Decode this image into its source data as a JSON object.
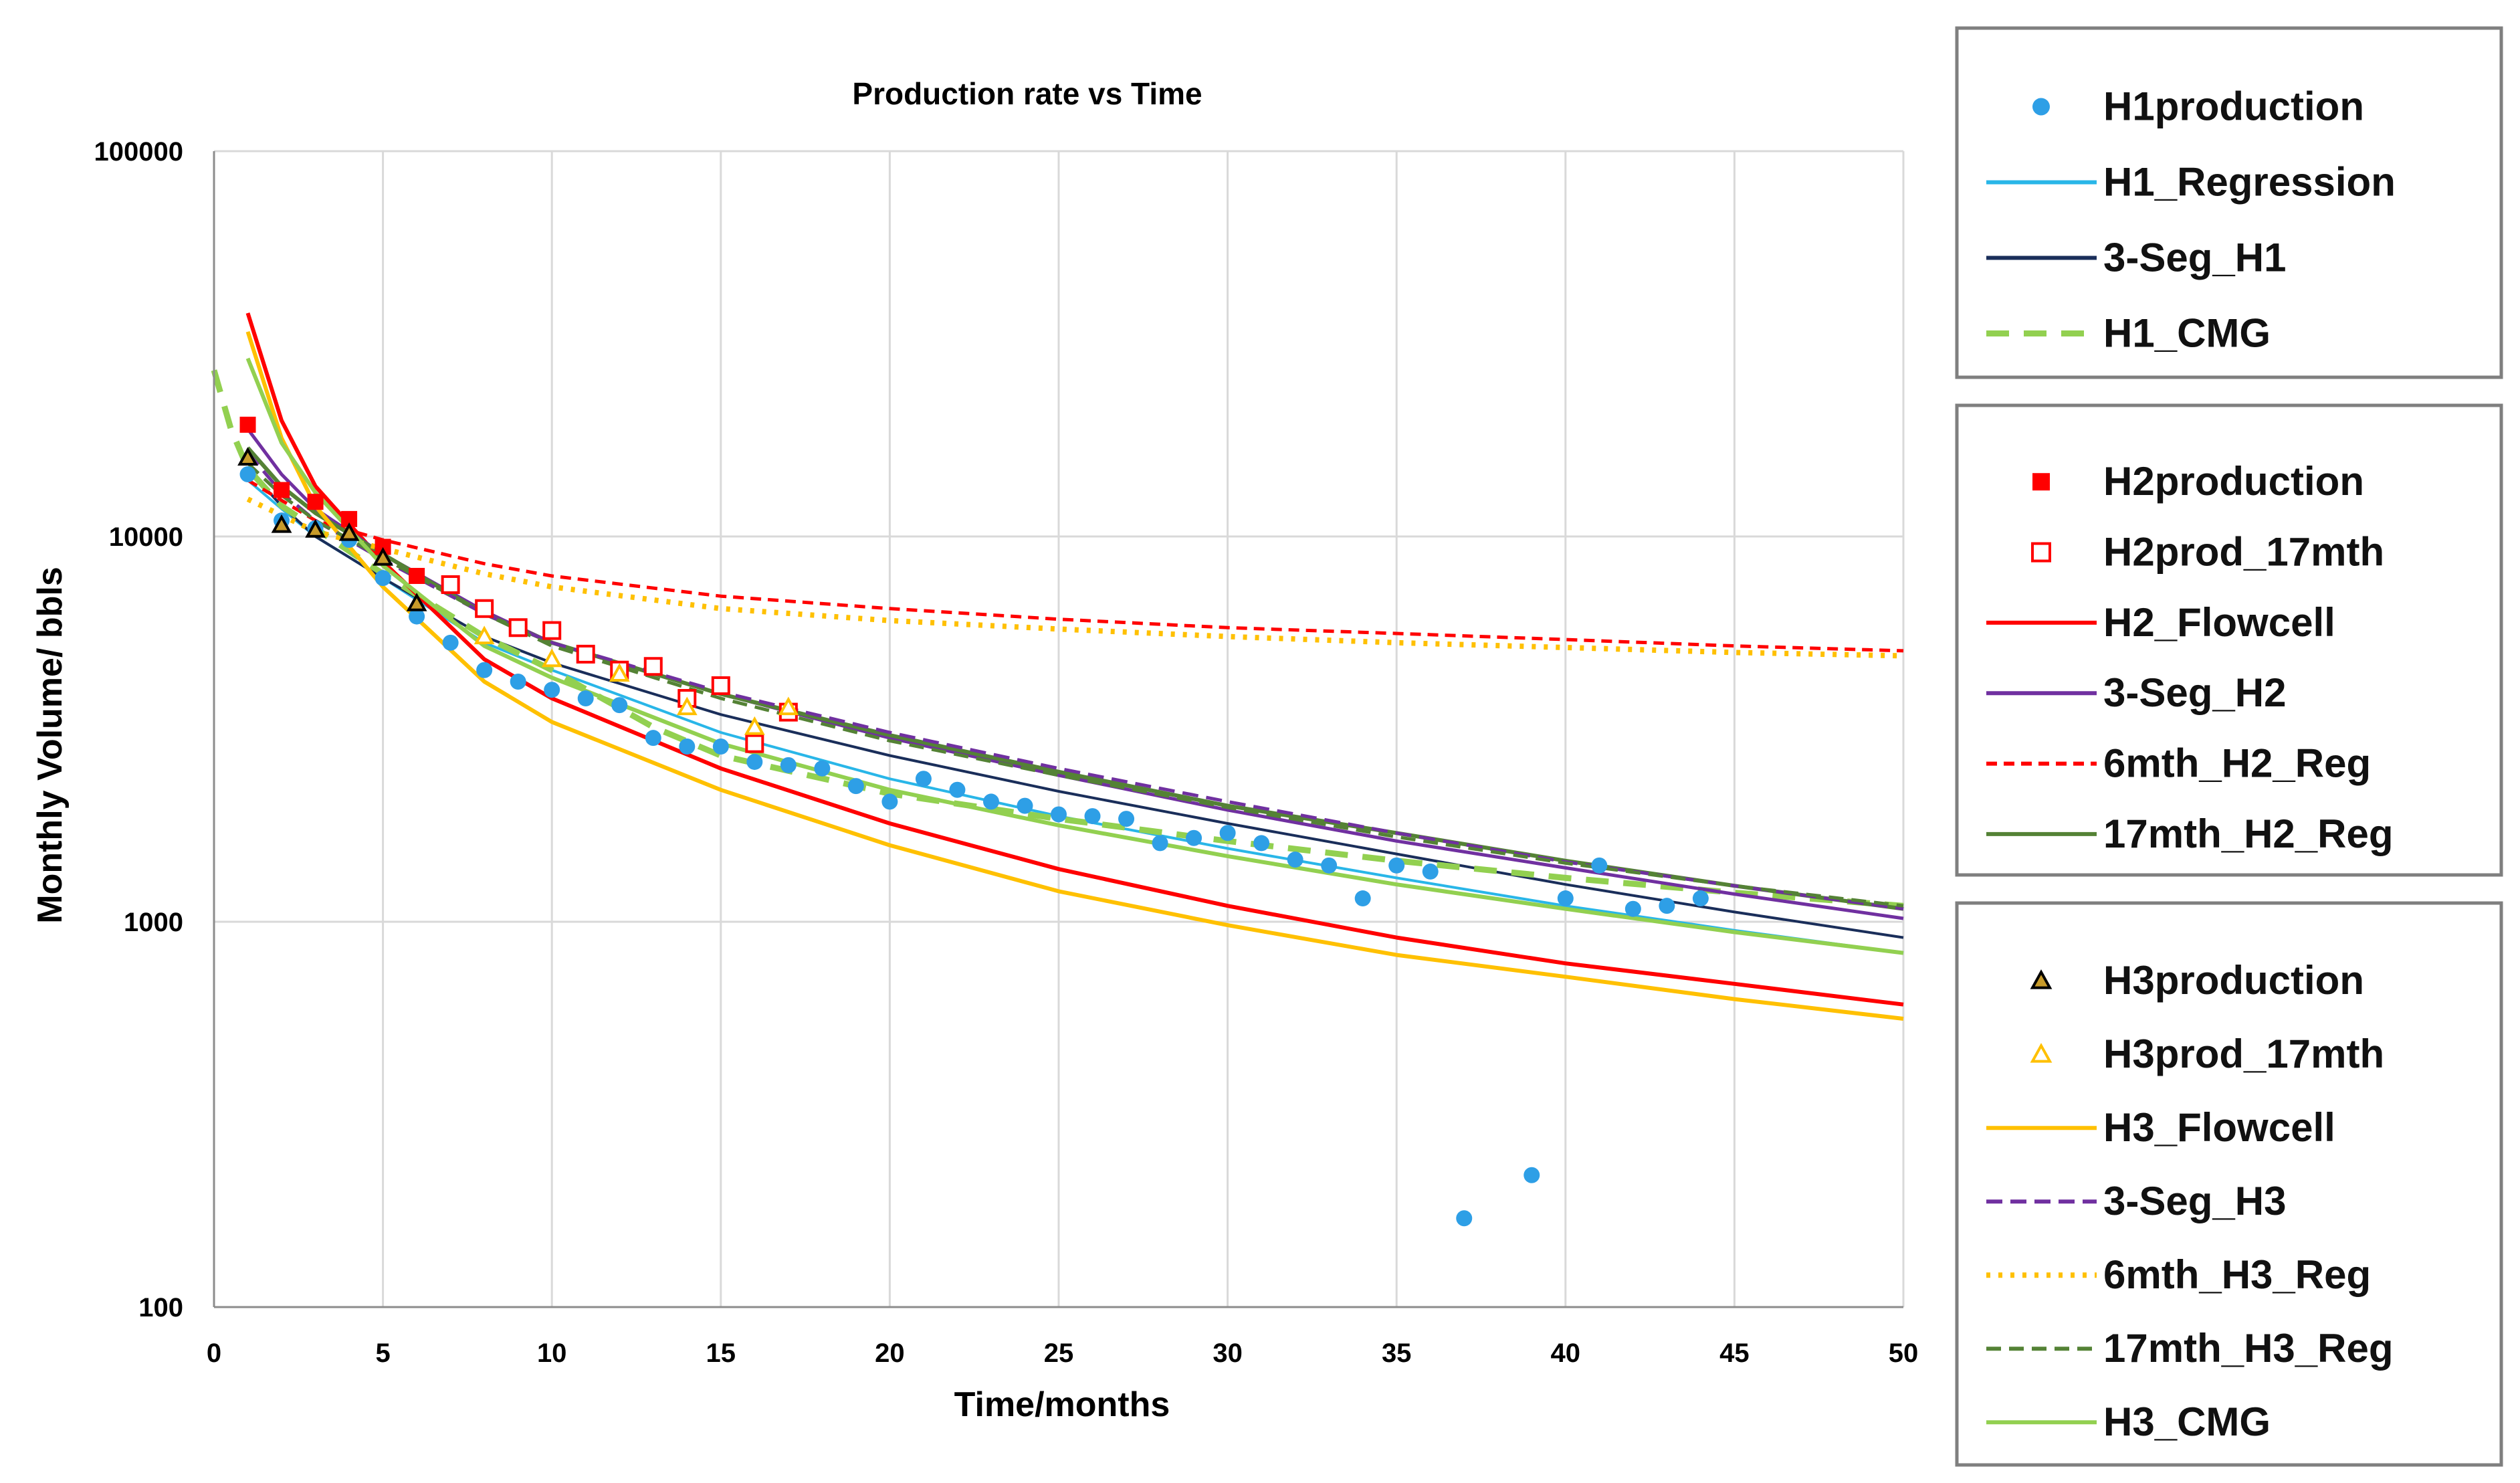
{
  "chart_data": {
    "type": "scatter",
    "title": "Production rate vs Time",
    "xlabel": "Time/months",
    "ylabel": "Monthly Volume/ bbls",
    "xlim": [
      0,
      50
    ],
    "ylim": [
      100,
      100000
    ],
    "yscale": "log",
    "grid": true,
    "xticks": [
      "0",
      "5",
      "10",
      "15",
      "20",
      "25",
      "30",
      "35",
      "40",
      "45",
      "50"
    ],
    "yticks": [
      "100",
      "1000",
      "10000",
      "100000"
    ],
    "legend_groups": [
      [
        "H1production",
        "H1_Regression",
        "3-Seg_H1",
        "H1_CMG"
      ],
      [
        "H2production",
        "H2prod_17mth",
        "H2_Flowcell",
        "3-Seg_H2",
        "6mth_H2_Reg",
        "17mth_H2_Reg"
      ],
      [
        "H3production",
        "H3prod_17mth",
        "H3_Flowcell",
        "3-Seg_H3",
        "6mth_H3_Reg",
        "17mth_H3_Reg",
        "H3_CMG"
      ]
    ],
    "series": [
      {
        "name": "H1production",
        "kind": "points",
        "marker": "circle",
        "color": "#2e9fe6",
        "x": [
          1,
          2,
          3,
          4,
          5,
          6,
          7,
          8,
          9,
          10,
          11,
          12,
          13,
          14,
          15,
          16,
          17,
          18,
          19,
          20,
          21,
          22,
          23,
          24,
          25,
          26,
          27,
          28,
          29,
          30,
          31,
          32,
          33,
          34,
          35,
          36,
          37,
          39,
          40,
          41,
          42,
          43,
          44
        ],
        "y": [
          14500,
          11000,
          10500,
          9800,
          7800,
          6200,
          5300,
          4500,
          4200,
          4000,
          3800,
          3650,
          3000,
          2850,
          2850,
          2600,
          2550,
          2500,
          2250,
          2050,
          2350,
          2200,
          2050,
          2000,
          1900,
          1880,
          1850,
          1600,
          1650,
          1700,
          1600,
          1450,
          1400,
          1150,
          1400,
          1350,
          170,
          220,
          1150,
          1400,
          1080,
          1100,
          1150
        ]
      },
      {
        "name": "H1_Regression",
        "kind": "line",
        "color": "#29b6e8",
        "width": 4,
        "x": [
          1,
          2,
          3,
          5,
          8,
          10,
          15,
          20,
          25,
          30,
          35,
          40,
          45,
          50
        ],
        "y": [
          14000,
          11800,
          10000,
          7800,
          5300,
          4500,
          3100,
          2350,
          1880,
          1550,
          1300,
          1100,
          950,
          830
        ]
      },
      {
        "name": "3-Seg_H1",
        "kind": "line",
        "color": "#1a2e5a",
        "width": 4,
        "x": [
          1,
          2,
          3,
          5,
          8,
          10,
          15,
          20,
          25,
          30,
          35,
          40,
          45,
          50
        ],
        "y": [
          15000,
          12000,
          10000,
          7800,
          5500,
          4700,
          3450,
          2700,
          2180,
          1800,
          1500,
          1250,
          1060,
          910
        ]
      },
      {
        "name": "H1_CMG",
        "kind": "line",
        "dash": "34 22",
        "color": "#92d050",
        "width": 9,
        "x": [
          0,
          0.5,
          1,
          2,
          3,
          5,
          8,
          10,
          13,
          15,
          20,
          25,
          30,
          35,
          40,
          45,
          50
        ],
        "y": [
          27000,
          19000,
          15000,
          12000,
          10500,
          8000,
          5500,
          4500,
          3200,
          2700,
          2150,
          1850,
          1620,
          1440,
          1300,
          1190,
          1100
        ]
      },
      {
        "name": "H2production",
        "kind": "points",
        "marker": "square",
        "color": "#ff0000",
        "x": [
          1,
          2,
          3,
          4,
          5,
          6
        ],
        "y": [
          19500,
          13200,
          12300,
          11100,
          9400,
          7900
        ]
      },
      {
        "name": "H2prod_17mth",
        "kind": "points",
        "marker": "square-open",
        "color": "#ff0000",
        "x": [
          7,
          8,
          9,
          10,
          11,
          12,
          13,
          14,
          15,
          16,
          17
        ],
        "y": [
          7500,
          6500,
          5800,
          5700,
          4950,
          4500,
          4600,
          3800,
          4100,
          2900,
          3500
        ]
      },
      {
        "name": "H2_Flowcell",
        "kind": "line",
        "color": "#ff0000",
        "width": 6,
        "x": [
          1,
          2,
          3,
          5,
          8,
          10,
          15,
          20,
          25,
          30,
          35,
          40,
          45,
          50
        ],
        "y": [
          38000,
          20000,
          13500,
          8600,
          4800,
          3800,
          2500,
          1800,
          1370,
          1100,
          910,
          780,
          690,
          610
        ]
      },
      {
        "name": "3-Seg_H2",
        "kind": "line",
        "color": "#7030a0",
        "width": 5,
        "x": [
          1,
          2,
          3,
          5,
          8,
          10,
          15,
          20,
          25,
          30,
          35,
          40,
          45,
          50
        ],
        "y": [
          19000,
          14500,
          11800,
          9000,
          6400,
          5300,
          3900,
          3000,
          2400,
          1950,
          1620,
          1380,
          1180,
          1020
        ]
      },
      {
        "name": "6mth_H2_Reg",
        "kind": "line",
        "dash": "16 10",
        "color": "#ff0000",
        "width": 5,
        "x": [
          1,
          3,
          5,
          8,
          10,
          15,
          20,
          25,
          30,
          35,
          40,
          45,
          50
        ],
        "y": [
          14000,
          11000,
          9800,
          8500,
          7900,
          7000,
          6500,
          6100,
          5800,
          5600,
          5400,
          5200,
          5050
        ]
      },
      {
        "name": "17mth_H2_Reg",
        "kind": "line",
        "color": "#548235",
        "width": 6,
        "x": [
          1,
          2,
          3,
          5,
          8,
          10,
          15,
          20,
          25,
          30,
          35,
          40,
          45,
          50
        ],
        "y": [
          17000,
          13500,
          11500,
          9000,
          6300,
          5300,
          3900,
          3050,
          2450,
          2000,
          1700,
          1440,
          1240,
          1080
        ]
      },
      {
        "name": "H3production",
        "kind": "points",
        "marker": "triangle",
        "color": "#000000",
        "fill": "#c89b2a",
        "x": [
          1,
          2,
          3,
          4,
          5,
          6
        ],
        "y": [
          16000,
          10700,
          10400,
          10200,
          8800,
          6700
        ]
      },
      {
        "name": "H3prod_17mth",
        "kind": "points",
        "marker": "triangle-open",
        "color": "#ffc000",
        "x": [
          8,
          10,
          12,
          14,
          16,
          17
        ],
        "y": [
          5500,
          4800,
          4400,
          3600,
          3200,
          3600
        ]
      },
      {
        "name": "H3_Flowcell",
        "kind": "line",
        "color": "#ffc000",
        "width": 6,
        "x": [
          1,
          2,
          3,
          5,
          8,
          10,
          15,
          20,
          25,
          30,
          35,
          40,
          45,
          50
        ],
        "y": [
          34000,
          18000,
          12000,
          7400,
          4200,
          3300,
          2200,
          1580,
          1200,
          980,
          820,
          720,
          630,
          560
        ]
      },
      {
        "name": "3-Seg_H3",
        "kind": "line",
        "dash": "24 12",
        "color": "#7030a0",
        "width": 5,
        "x": [
          1,
          2,
          3,
          5,
          8,
          10,
          15,
          20,
          25,
          30,
          35,
          40,
          45,
          50
        ],
        "y": [
          16500,
          13000,
          11000,
          8700,
          6300,
          5300,
          3950,
          3100,
          2500,
          2050,
          1700,
          1430,
          1240,
          1080
        ]
      },
      {
        "name": "6mth_H3_Reg",
        "kind": "line",
        "dash": "6 12",
        "color": "#ffc000",
        "width": 8,
        "x": [
          1,
          3,
          5,
          8,
          10,
          15,
          20,
          25,
          30,
          35,
          40,
          45,
          50
        ],
        "y": [
          12500,
          10300,
          9300,
          8000,
          7400,
          6500,
          6050,
          5750,
          5500,
          5300,
          5150,
          5000,
          4900
        ]
      },
      {
        "name": "17mth_H3_Reg",
        "kind": "line",
        "dash": "22 12",
        "color": "#548235",
        "width": 5,
        "x": [
          1,
          2,
          3,
          5,
          8,
          10,
          15,
          20,
          25,
          30,
          35,
          40,
          45,
          50
        ],
        "y": [
          15500,
          12800,
          11000,
          8800,
          6300,
          5200,
          3800,
          2950,
          2400,
          1980,
          1660,
          1420,
          1240,
          1100
        ]
      },
      {
        "name": "H3_CMG",
        "kind": "line",
        "color": "#92d050",
        "width": 6,
        "x": [
          1,
          2,
          3,
          5,
          8,
          10,
          15,
          20,
          25,
          30,
          35,
          40,
          45,
          50
        ],
        "y": [
          29000,
          17500,
          13000,
          8400,
          5200,
          4300,
          2900,
          2200,
          1780,
          1480,
          1250,
          1080,
          940,
          830
        ]
      }
    ]
  }
}
